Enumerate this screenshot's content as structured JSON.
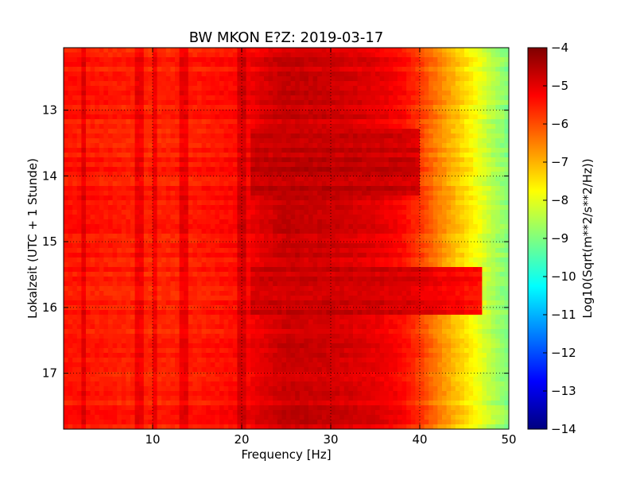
{
  "chart_data": {
    "type": "heatmap",
    "title": "BW MKON E?Z: 2019-03-17",
    "xlabel": "Frequency [Hz]",
    "ylabel": "Lokalzeit (UTC + 1 Stunde)",
    "xlim": [
      0,
      50
    ],
    "ylim": [
      17.85,
      12.05
    ],
    "x_ticks": [
      10,
      20,
      30,
      40,
      50
    ],
    "x_tick_labels": [
      "10",
      "20",
      "30",
      "40",
      "50"
    ],
    "y_ticks": [
      13,
      14,
      15,
      16,
      17
    ],
    "y_tick_labels": [
      "13",
      "14",
      "15",
      "16",
      "17"
    ],
    "grid": true,
    "colorbar": {
      "label": "Log10(Sqrt(m**2/s**2/Hz))",
      "range": [
        -14,
        -4
      ],
      "ticks": [
        -4,
        -5,
        -6,
        -7,
        -8,
        -9,
        -10,
        -11,
        -12,
        -13,
        -14
      ],
      "tick_labels": [
        "−4",
        "−5",
        "−6",
        "−7",
        "−8",
        "−9",
        "−10",
        "−11",
        "−12",
        "−13",
        "−14"
      ],
      "colormap": "jet"
    },
    "spectral_profile": {
      "frequency_hz": [
        0,
        5,
        10,
        15,
        20,
        22,
        25,
        30,
        35,
        38,
        40,
        42,
        44,
        46,
        48,
        50
      ],
      "level": [
        -5.4,
        -5.5,
        -5.6,
        -5.5,
        -5.3,
        -5.0,
        -4.7,
        -4.8,
        -5.0,
        -5.3,
        -5.8,
        -6.5,
        -7.1,
        -7.7,
        -8.4,
        -9.0
      ]
    },
    "spectral_lines_hz": [
      2.3,
      8.5,
      10.2,
      13.5,
      20.0
    ],
    "energetic_time_bands": [
      {
        "from": 13.3,
        "to": 14.3,
        "freq_range": [
          21,
          40
        ],
        "level": -4.6
      },
      {
        "from": 15.4,
        "to": 16.1,
        "freq_range": [
          21,
          47
        ],
        "level": -4.7
      }
    ]
  }
}
